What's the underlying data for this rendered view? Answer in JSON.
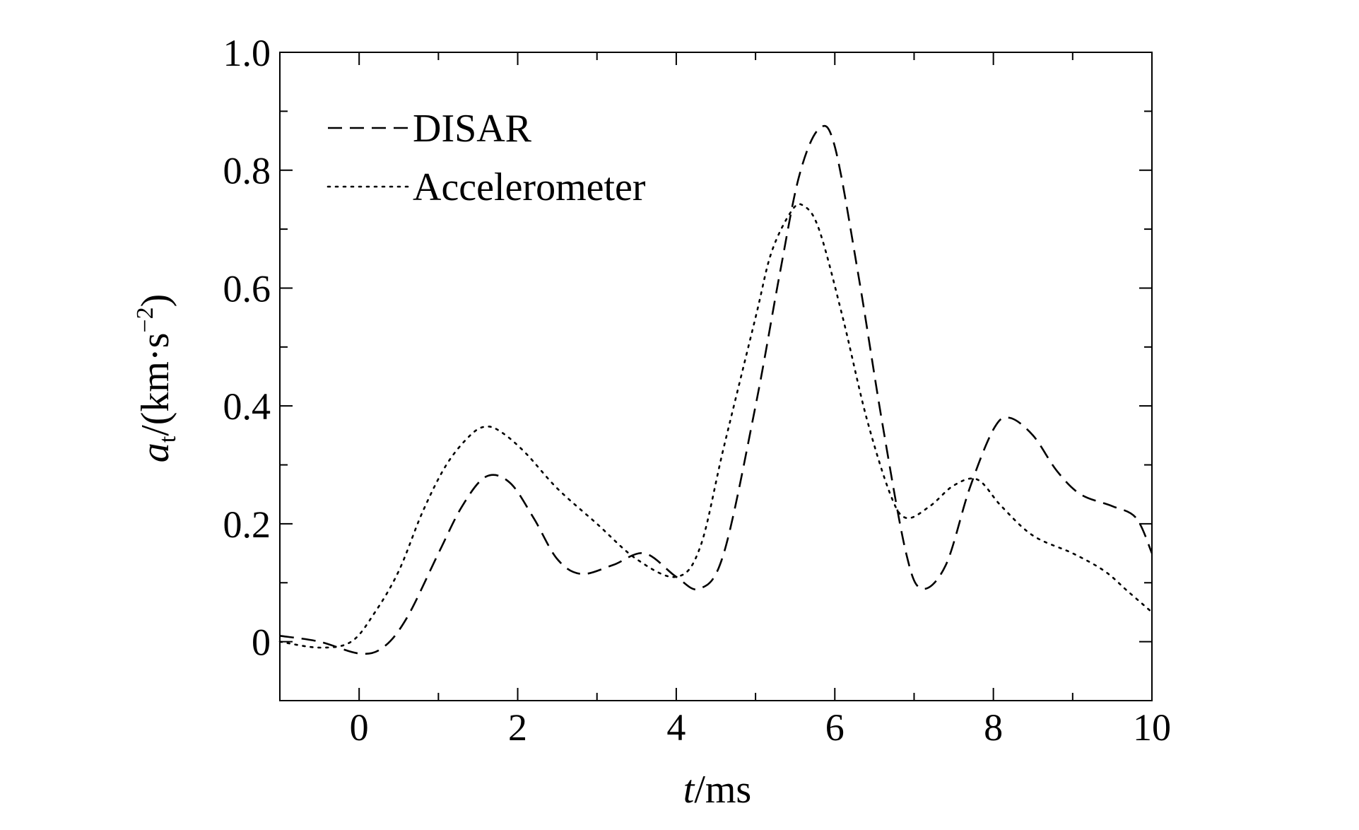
{
  "chart_data": {
    "type": "line",
    "xlabel_var": "t",
    "xlabel_unit": "/ms",
    "ylabel_var": "a",
    "ylabel_sub": "t",
    "ylabel_unit": "/(km·s",
    "ylabel_exp": "−2",
    "ylabel_close": ")",
    "xlim": [
      -1,
      10
    ],
    "ylim": [
      -0.1,
      1.0
    ],
    "x_ticks": [
      0,
      2,
      4,
      6,
      8,
      10
    ],
    "x_tick_labels": [
      "0",
      "2",
      "4",
      "6",
      "8",
      "10"
    ],
    "y_ticks": [
      0,
      0.2,
      0.4,
      0.6,
      0.8,
      1.0
    ],
    "y_tick_labels": [
      "0",
      "0.2",
      "0.4",
      "0.6",
      "0.8",
      "1.0"
    ],
    "grid": false,
    "legend_position": "top-left",
    "series": [
      {
        "name": "DISAR",
        "style": "dashed",
        "color": "#000000",
        "x": [
          -1,
          -0.5,
          0,
          0.3,
          0.6,
          1.0,
          1.3,
          1.6,
          1.9,
          2.2,
          2.5,
          2.8,
          3.2,
          3.6,
          4.0,
          4.3,
          4.6,
          5.0,
          5.3,
          5.55,
          5.8,
          6.0,
          6.3,
          6.6,
          6.9,
          7.1,
          7.4,
          7.7,
          8.0,
          8.2,
          8.5,
          8.8,
          9.1,
          9.5,
          9.8,
          10.0
        ],
        "y": [
          0.01,
          0.0,
          -0.02,
          -0.01,
          0.04,
          0.15,
          0.23,
          0.28,
          0.27,
          0.21,
          0.14,
          0.115,
          0.13,
          0.15,
          0.11,
          0.09,
          0.15,
          0.4,
          0.62,
          0.79,
          0.87,
          0.84,
          0.62,
          0.37,
          0.15,
          0.09,
          0.13,
          0.26,
          0.36,
          0.38,
          0.35,
          0.29,
          0.25,
          0.23,
          0.21,
          0.15
        ]
      },
      {
        "name": "Accelerometer",
        "style": "dotted",
        "color": "#000000",
        "x": [
          -1,
          -0.5,
          -0.1,
          0.2,
          0.5,
          0.8,
          1.1,
          1.4,
          1.6,
          1.8,
          2.1,
          2.5,
          3.0,
          3.5,
          4.0,
          4.3,
          4.6,
          5.0,
          5.2,
          5.45,
          5.6,
          5.8,
          6.1,
          6.4,
          6.7,
          6.9,
          7.2,
          7.5,
          7.8,
          8.1,
          8.5,
          9.0,
          9.4,
          9.7,
          10.0
        ],
        "y": [
          0.0,
          -0.01,
          0.0,
          0.05,
          0.12,
          0.22,
          0.3,
          0.35,
          0.365,
          0.355,
          0.32,
          0.26,
          0.2,
          0.14,
          0.11,
          0.16,
          0.33,
          0.55,
          0.66,
          0.73,
          0.74,
          0.7,
          0.55,
          0.38,
          0.25,
          0.21,
          0.23,
          0.265,
          0.275,
          0.23,
          0.18,
          0.15,
          0.12,
          0.085,
          0.05
        ]
      }
    ]
  }
}
